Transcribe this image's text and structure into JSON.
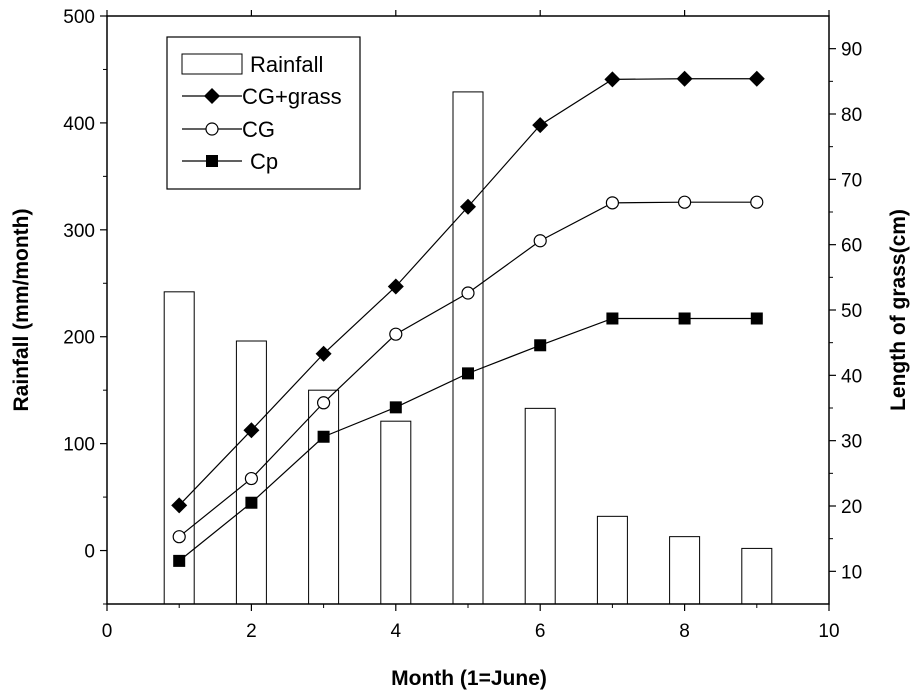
{
  "chart_data": {
    "type": "bar+line",
    "xlabel": "Month (1=June)",
    "ylabel_left": "Rainfall (mm/month)",
    "ylabel_right": "Length of grass(cm)",
    "xlim": [
      0,
      10
    ],
    "ylim_left": [
      -50,
      500
    ],
    "ylim_right": [
      5,
      95
    ],
    "x_ticks": [
      0,
      2,
      4,
      6,
      8,
      10
    ],
    "y_left_ticks": [
      0,
      100,
      200,
      300,
      400,
      500
    ],
    "y_right_ticks": [
      10,
      20,
      30,
      40,
      50,
      60,
      70,
      80,
      90
    ],
    "grid": false,
    "legend_position": "top-left",
    "bars": {
      "name": "Rainfall",
      "axis": "left",
      "x": [
        1,
        2,
        3,
        4,
        5,
        6,
        7,
        8,
        9
      ],
      "values": [
        242,
        196,
        150,
        121,
        429,
        133,
        32,
        13,
        2
      ]
    },
    "series": [
      {
        "name": "CG+grass",
        "marker": "filled-diamond",
        "axis": "right",
        "x": [
          1,
          2,
          3,
          4,
          5,
          6,
          7,
          8,
          9
        ],
        "values": [
          20.1,
          31.6,
          43.3,
          53.6,
          65.8,
          78.3,
          85.3,
          85.4,
          85.4
        ]
      },
      {
        "name": "CG",
        "marker": "open-circle",
        "axis": "right",
        "x": [
          1,
          2,
          3,
          4,
          5,
          6,
          7,
          8,
          9
        ],
        "values": [
          15.3,
          24.2,
          35.8,
          46.3,
          52.6,
          60.6,
          66.4,
          66.5,
          66.5
        ]
      },
      {
        "name": "Cp",
        "marker": "filled-square",
        "axis": "right",
        "x": [
          1,
          2,
          3,
          4,
          5,
          6,
          7,
          8,
          9
        ],
        "values": [
          11.6,
          20.5,
          30.6,
          35.1,
          40.3,
          44.6,
          48.7,
          48.7,
          48.7
        ]
      }
    ]
  }
}
